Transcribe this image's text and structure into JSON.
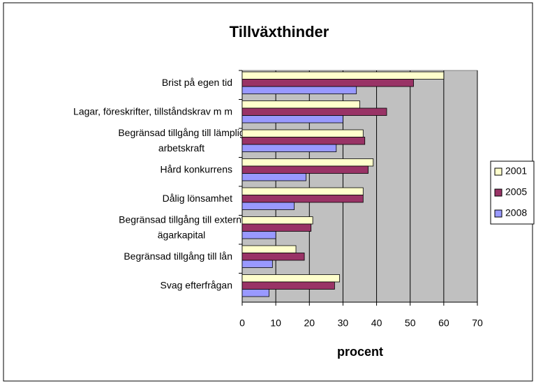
{
  "chart_data": {
    "type": "bar",
    "orientation": "horizontal",
    "title": "Tillväxthinder",
    "xlabel": "procent",
    "categories": [
      "Brist på egen tid",
      "Lagar, föreskrifter, tillståndskrav m m",
      "Begränsad tillgång till lämplig\narbetskraft",
      "Hård konkurrens",
      "Dålig lönsamhet",
      "Begränsad tillgång till externt\nägarkapital",
      "Begränsad tillgång till lån",
      "Svag efterfrågan"
    ],
    "series": [
      {
        "name": "2001",
        "color": "#ffffcc",
        "values": [
          60,
          35,
          36,
          39,
          36,
          21,
          16,
          29
        ]
      },
      {
        "name": "2005",
        "color": "#993366",
        "values": [
          51,
          43,
          36.5,
          37.5,
          36,
          20.5,
          18.5,
          27.5
        ]
      },
      {
        "name": "2008",
        "color": "#9999ff",
        "values": [
          34,
          30,
          28,
          19,
          15.5,
          10,
          9,
          8
        ]
      }
    ],
    "xlim": [
      0,
      70
    ],
    "xticks": [
      0,
      10,
      20,
      30,
      40,
      50,
      60,
      70
    ],
    "grid": true,
    "legend": "right"
  }
}
